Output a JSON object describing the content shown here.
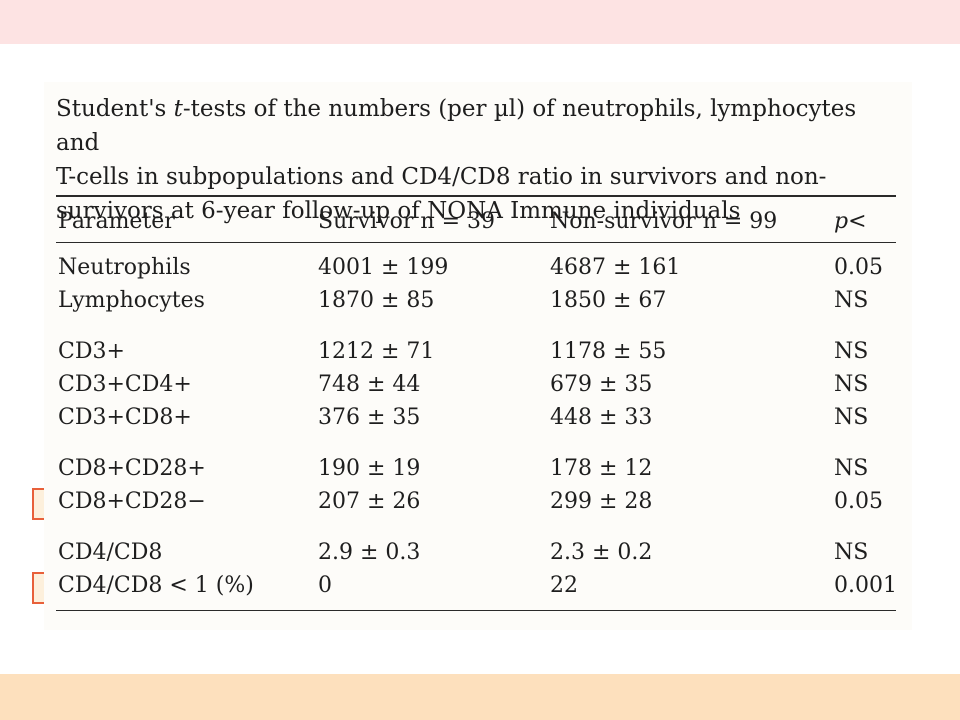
{
  "caption": "Student's t-tests of the numbers (per µl) of neutrophils, lymphocytes and T-cells in subpopulations and CD4/CD8 ratio in survivors and non-survivors at 6-year follow-up of NONA Immune individuals",
  "caption_lines": [
    "Student's ",
    "t",
    "-tests of the numbers (per µl) of neutrophils, lymphocytes and",
    "T-cells in subpopulations and CD4/CD8 ratio in survivors and non-",
    "survivors at 6-year follow-up of NONA Immune individuals"
  ],
  "columns": {
    "parameter": "Parameter",
    "survivor": "Survivor n = 39",
    "non_survivor": "Non-survivor n = 99",
    "p": "p<"
  },
  "rows": [
    {
      "parameter": "Neutrophils",
      "survivor": "4001 ± 199",
      "non_survivor": "4687 ± 161",
      "p": "0.05"
    },
    {
      "parameter": "Lymphocytes",
      "survivor": "1870 ± 85",
      "non_survivor": "1850 ± 67",
      "p": "NS"
    },
    {
      "parameter": "CD3+",
      "survivor": "1212 ± 71",
      "non_survivor": "1178 ± 55",
      "p": "NS"
    },
    {
      "parameter": "CD3+CD4+",
      "survivor": "748 ± 44",
      "non_survivor": "679 ± 35",
      "p": "NS"
    },
    {
      "parameter": "CD3+CD8+",
      "survivor": "376 ± 35",
      "non_survivor": "448 ± 33",
      "p": "NS"
    },
    {
      "parameter": "CD8+CD28+",
      "survivor": "190 ± 19",
      "non_survivor": "178 ± 12",
      "p": "NS"
    },
    {
      "parameter": "CD8+CD28−",
      "survivor": "207 ± 26",
      "non_survivor": "299 ± 28",
      "p": "0.05",
      "highlighted": true
    },
    {
      "parameter": "CD4/CD8",
      "survivor": "2.9 ± 0.3",
      "non_survivor": "2.3 ± 0.2",
      "p": "NS"
    },
    {
      "parameter": "CD4/CD8 < 1 (%)",
      "survivor": "0",
      "non_survivor": "22",
      "p": "0.001",
      "highlighted": true
    }
  ],
  "colors": {
    "top_band": "#fde3e3",
    "bottom_band": "#fde0bd",
    "highlight_border": "#e8603a",
    "highlight_fill": "#fdf0dc"
  }
}
